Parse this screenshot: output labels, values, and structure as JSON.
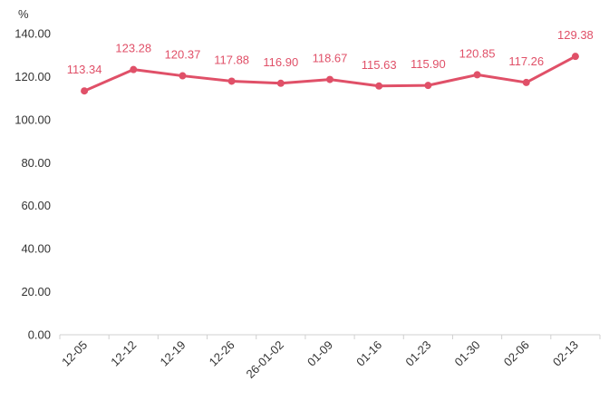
{
  "chart_data": {
    "type": "line",
    "unit_label": "%",
    "categories": [
      "12-05",
      "12-12",
      "12-19",
      "12-26",
      "26-01-02",
      "01-09",
      "01-16",
      "01-23",
      "01-30",
      "02-06",
      "02-13"
    ],
    "series": [
      {
        "values": [
          113.34,
          123.28,
          120.37,
          117.88,
          116.9,
          118.67,
          115.63,
          115.9,
          120.85,
          117.26,
          129.38
        ],
        "labels": [
          "113.34",
          "123.28",
          "120.37",
          "117.88",
          "116.90",
          "118.67",
          "115.63",
          "115.90",
          "120.85",
          "117.26",
          "129.38"
        ],
        "color": "#e05068"
      }
    ],
    "ylim": [
      0,
      140
    ],
    "yticks": [
      "0.00",
      "20.00",
      "40.00",
      "60.00",
      "80.00",
      "100.00",
      "120.00",
      "140.00"
    ],
    "grid": false,
    "title": "",
    "xlabel": "",
    "ylabel": ""
  }
}
